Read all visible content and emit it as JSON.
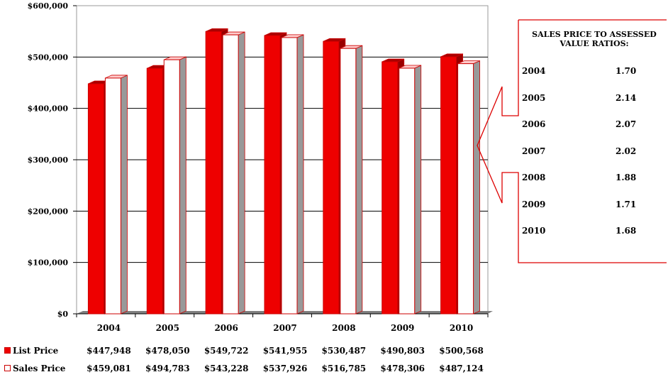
{
  "chart_data": {
    "type": "bar",
    "categories": [
      "2004",
      "2005",
      "2006",
      "2007",
      "2008",
      "2009",
      "2010"
    ],
    "series": [
      {
        "name": "List Price",
        "color": "#ee0000",
        "values": [
          447948,
          478050,
          549722,
          541955,
          530487,
          490803,
          500568
        ],
        "value_labels": [
          "$447,948",
          "$478,050",
          "$549,722",
          "$541,955",
          "$530,487",
          "$490,803",
          "$500,568"
        ]
      },
      {
        "name": "Sales Price",
        "color": "#ffffff",
        "values": [
          459081,
          494783,
          543228,
          537926,
          516785,
          478306,
          487124
        ],
        "value_labels": [
          "$459,081",
          "$494,783",
          "$543,228",
          "$537,926",
          "$516,785",
          "$478,306",
          "$487,124"
        ]
      }
    ],
    "yticks": [
      "$0",
      "$100,000",
      "$200,000",
      "$300,000",
      "$400,000",
      "$500,000",
      "$600,000"
    ],
    "ylim": [
      0,
      600000
    ],
    "grid": true,
    "legend": "bottom data table"
  },
  "callout": {
    "title": "SALES PRICE TO ASSESSED VALUE RATIOS:",
    "rows": [
      {
        "year": "2004",
        "ratio": "1.70"
      },
      {
        "year": "2005",
        "ratio": "2.14"
      },
      {
        "year": "2006",
        "ratio": "2.07"
      },
      {
        "year": "2007",
        "ratio": "2.02"
      },
      {
        "year": "2008",
        "ratio": "1.88"
      },
      {
        "year": "2009",
        "ratio": "1.71"
      },
      {
        "year": "2010",
        "ratio": "1.68"
      }
    ]
  },
  "colors": {
    "border": "#cc0000",
    "floor": "#808080"
  }
}
